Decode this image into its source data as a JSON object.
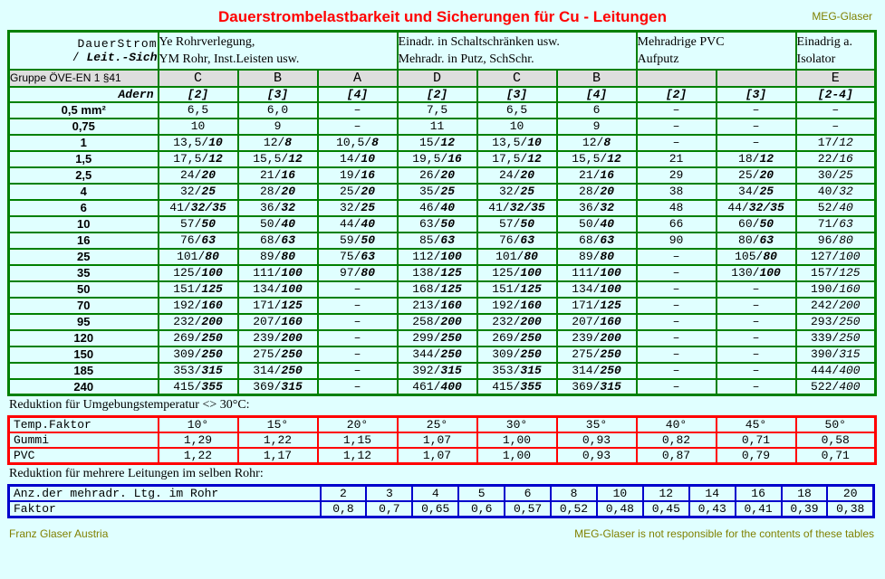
{
  "page": {
    "title": "Dauerstrombelastbarkeit und Sicherungen für Cu - Leitungen",
    "brand": "MEG-Glaser",
    "footer_left": "Franz Glaser Austria",
    "footer_right": "MEG-Glaser is not responsible for the contents of these tables"
  },
  "colors": {
    "accent_title": "#ff0000",
    "brand_olive": "#808000",
    "main_border": "#008000",
    "temp_border": "#ff0000",
    "bundle_border": "#0000cc",
    "background": "#e0ffff",
    "gruppe_row_bg": "#dedede"
  },
  "main_table": {
    "corner": {
      "line1": "DauerStrom",
      "line2_prefix": "/ ",
      "line2_italic": "Leit.-Sich"
    },
    "groups": [
      {
        "line1": "Ye Rohrverlegung,",
        "line2": "YM Rohr, Inst.Leisten usw.",
        "span": 3
      },
      {
        "line1": "Einadr. in Schaltschränken usw.",
        "line2": "Mehradr. in Putz, SchSchr.",
        "span": 3
      },
      {
        "line1": "Mehradrige PVC",
        "line2": "Aufputz",
        "span": 2
      },
      {
        "line1": "Einadrig a.",
        "line2": "Isolator",
        "span": 1
      }
    ],
    "gruppe_label": "Gruppe ÖVE-EN 1 §41",
    "gruppe_letters": [
      "C",
      "B",
      "A",
      "D",
      "C",
      "B",
      "",
      "",
      "E"
    ],
    "adern_label": "Adern",
    "adern_cols": [
      "[2]",
      "[3]",
      "[4]",
      "[2]",
      "[3]",
      "[4]",
      "[2]",
      "[3]",
      "[2-4]"
    ],
    "light_italic_col_index": 8,
    "rows": [
      {
        "label": "0,5 mm²",
        "cells": [
          "6,5",
          "6,0",
          "–",
          "7,5",
          "6,5",
          "6",
          "–",
          "–",
          "–"
        ]
      },
      {
        "label": "0,75",
        "cells": [
          "10",
          "9",
          "–",
          "11",
          "10",
          "9",
          "–",
          "–",
          "–"
        ]
      },
      {
        "label": "1",
        "cells": [
          "13,5/10",
          "12/8",
          "10,5/8",
          "15/12",
          "13,5/10",
          "12/8",
          "–",
          "–",
          "17/12"
        ]
      },
      {
        "label": "1,5",
        "cells": [
          "17,5/12",
          "15,5/12",
          "14/10",
          "19,5/16",
          "17,5/12",
          "15,5/12",
          "21",
          "18/12",
          "22/16"
        ]
      },
      {
        "label": "2,5",
        "cells": [
          "24/20",
          "21/16",
          "19/16",
          "26/20",
          "24/20",
          "21/16",
          "29",
          "25/20",
          "30/25"
        ]
      },
      {
        "label": "4",
        "cells": [
          "32/25",
          "28/20",
          "25/20",
          "35/25",
          "32/25",
          "28/20",
          "38",
          "34/25",
          "40/32"
        ]
      },
      {
        "label": "6",
        "cells": [
          "41/32/35",
          "36/32",
          "32/25",
          "46/40",
          "41/32/35",
          "36/32",
          "48",
          "44/32/35",
          "52/40"
        ]
      },
      {
        "label": "10",
        "cells": [
          "57/50",
          "50/40",
          "44/40",
          "63/50",
          "57/50",
          "50/40",
          "66",
          "60/50",
          "71/63"
        ]
      },
      {
        "label": "16",
        "cells": [
          "76/63",
          "68/63",
          "59/50",
          "85/63",
          "76/63",
          "68/63",
          "90",
          "80/63",
          "96/80"
        ]
      },
      {
        "label": "25",
        "cells": [
          "101/80",
          "89/80",
          "75/63",
          "112/100",
          "101/80",
          "89/80",
          "–",
          "105/80",
          "127/100"
        ]
      },
      {
        "label": "35",
        "cells": [
          "125/100",
          "111/100",
          "97/80",
          "138/125",
          "125/100",
          "111/100",
          "–",
          "130/100",
          "157/125"
        ]
      },
      {
        "label": "50",
        "cells": [
          "151/125",
          "134/100",
          "–",
          "168/125",
          "151/125",
          "134/100",
          "–",
          "–",
          "190/160"
        ]
      },
      {
        "label": "70",
        "cells": [
          "192/160",
          "171/125",
          "–",
          "213/160",
          "192/160",
          "171/125",
          "–",
          "–",
          "242/200"
        ]
      },
      {
        "label": "95",
        "cells": [
          "232/200",
          "207/160",
          "–",
          "258/200",
          "232/200",
          "207/160",
          "–",
          "–",
          "293/250"
        ]
      },
      {
        "label": "120",
        "cells": [
          "269/250",
          "239/200",
          "–",
          "299/250",
          "269/250",
          "239/200",
          "–",
          "–",
          "339/250"
        ]
      },
      {
        "label": "150",
        "cells": [
          "309/250",
          "275/250",
          "–",
          "344/250",
          "309/250",
          "275/250",
          "–",
          "–",
          "390/315"
        ]
      },
      {
        "label": "185",
        "cells": [
          "353/315",
          "314/250",
          "–",
          "392/315",
          "353/315",
          "314/250",
          "–",
          "–",
          "444/400"
        ]
      },
      {
        "label": "240",
        "cells": [
          "415/355",
          "369/315",
          "–",
          "461/400",
          "415/355",
          "369/315",
          "–",
          "–",
          "522/400"
        ]
      }
    ]
  },
  "temp_section": {
    "label": "Reduktion für Umgebungstemperatur <> 30°C:",
    "header_label": "Temp.Faktor",
    "temps": [
      "10°",
      "15°",
      "20°",
      "25°",
      "30°",
      "35°",
      "40°",
      "45°",
      "50°"
    ],
    "rows": [
      {
        "label": "Gummi",
        "values": [
          "1,29",
          "1,22",
          "1,15",
          "1,07",
          "1,00",
          "0,93",
          "0,82",
          "0,71",
          "0,58"
        ]
      },
      {
        "label": "PVC",
        "values": [
          "1,22",
          "1,17",
          "1,12",
          "1,07",
          "1,00",
          "0,93",
          "0,87",
          "0,79",
          "0,71"
        ]
      }
    ]
  },
  "bundle_section": {
    "label": "Reduktion für mehrere Leitungen im selben Rohr:",
    "count_label": "Anz.der mehradr. Ltg. im Rohr",
    "counts": [
      "2",
      "3",
      "4",
      "5",
      "6",
      "8",
      "10",
      "12",
      "14",
      "16",
      "18",
      "20"
    ],
    "factor_label": "Faktor",
    "factors": [
      "0,8",
      "0,7",
      "0,65",
      "0,6",
      "0,57",
      "0,52",
      "0,48",
      "0,45",
      "0,43",
      "0,41",
      "0,39",
      "0,38"
    ]
  }
}
